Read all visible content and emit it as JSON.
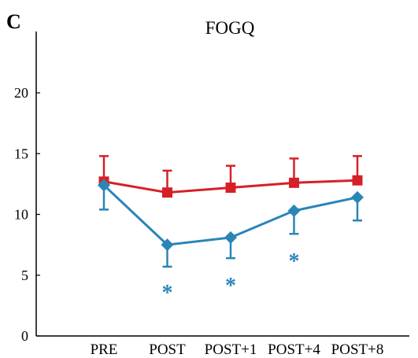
{
  "chart_data": {
    "type": "line",
    "panel_label": "C",
    "title": "FOGQ",
    "xlabel": "",
    "ylabel": "",
    "categories": [
      "PRE",
      "POST",
      "POST+1",
      "POST+4",
      "POST+8"
    ],
    "ylim": [
      0,
      20
    ],
    "yticks": [
      0,
      5,
      10,
      15,
      20
    ],
    "grid": false,
    "legend": "none",
    "series": [
      {
        "color": "#d62027",
        "marker": "square",
        "values": [
          12.7,
          11.8,
          12.2,
          12.6,
          12.8
        ],
        "error": [
          2.1,
          1.8,
          1.8,
          2.0,
          2.0
        ],
        "error_direction": "up"
      },
      {
        "color": "#2a85b8",
        "marker": "diamond",
        "values": [
          12.4,
          7.5,
          8.1,
          10.3,
          11.4
        ],
        "error": [
          2.0,
          1.8,
          1.7,
          1.9,
          1.9
        ],
        "error_direction": "down"
      }
    ],
    "significance": [
      {
        "category": "POST",
        "label": "*",
        "color": "#2a85b8"
      },
      {
        "category": "POST+1",
        "label": "*",
        "color": "#2a85b8"
      },
      {
        "category": "POST+4",
        "label": "*",
        "color": "#2a85b8"
      }
    ]
  }
}
